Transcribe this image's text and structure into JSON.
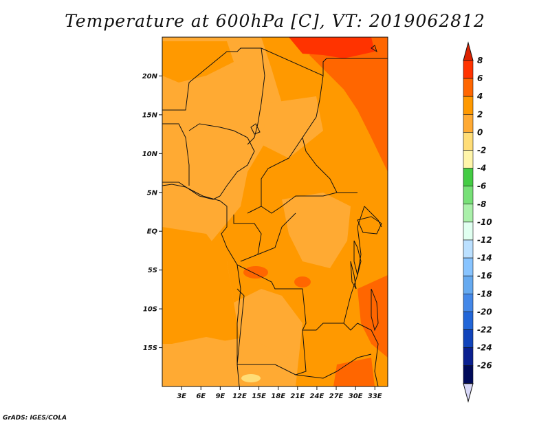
{
  "title": "Temperature at 600hPa [C], VT: 2019062812",
  "footer": "GrADS: IGES/COLA",
  "map": {
    "lon_range": [
      0,
      35
    ],
    "lat_range": [
      -20,
      25
    ],
    "lat_ticks": [
      {
        "value": 20,
        "label": "20N"
      },
      {
        "value": 15,
        "label": "15N"
      },
      {
        "value": 10,
        "label": "10N"
      },
      {
        "value": 5,
        "label": "5N"
      },
      {
        "value": 0,
        "label": "EQ"
      },
      {
        "value": -5,
        "label": "5S"
      },
      {
        "value": -10,
        "label": "10S"
      },
      {
        "value": -15,
        "label": "15S"
      }
    ],
    "lon_ticks": [
      {
        "value": 3,
        "label": "3E"
      },
      {
        "value": 6,
        "label": "6E"
      },
      {
        "value": 9,
        "label": "9E"
      },
      {
        "value": 12,
        "label": "12E"
      },
      {
        "value": 15,
        "label": "15E"
      },
      {
        "value": 18,
        "label": "18E"
      },
      {
        "value": 21,
        "label": "21E"
      },
      {
        "value": 24,
        "label": "24E"
      },
      {
        "value": 27,
        "label": "27E"
      },
      {
        "value": 30,
        "label": "30E"
      },
      {
        "value": 33,
        "label": "33E"
      }
    ]
  },
  "colorbar": {
    "labels": [
      "8",
      "6",
      "4",
      "2",
      "0",
      "-2",
      "-4",
      "-6",
      "-8",
      "-10",
      "-12",
      "-14",
      "-16",
      "-18",
      "-20",
      "-22",
      "-24",
      "-26"
    ],
    "colors": [
      "#ff3300",
      "#ff6600",
      "#ff9900",
      "#ffaa33",
      "#ffdd77",
      "#fff5aa",
      "#44cc44",
      "#77e077",
      "#aaf0aa",
      "#e0fff0",
      "#bbe0ff",
      "#88c4ff",
      "#66aaf0",
      "#4488e8",
      "#2266d8",
      "#1144bb",
      "#0a2090",
      "#000a5a"
    ],
    "top_arrow_color": "#dd2200",
    "bottom_arrow_color": "#d8d8f8"
  }
}
